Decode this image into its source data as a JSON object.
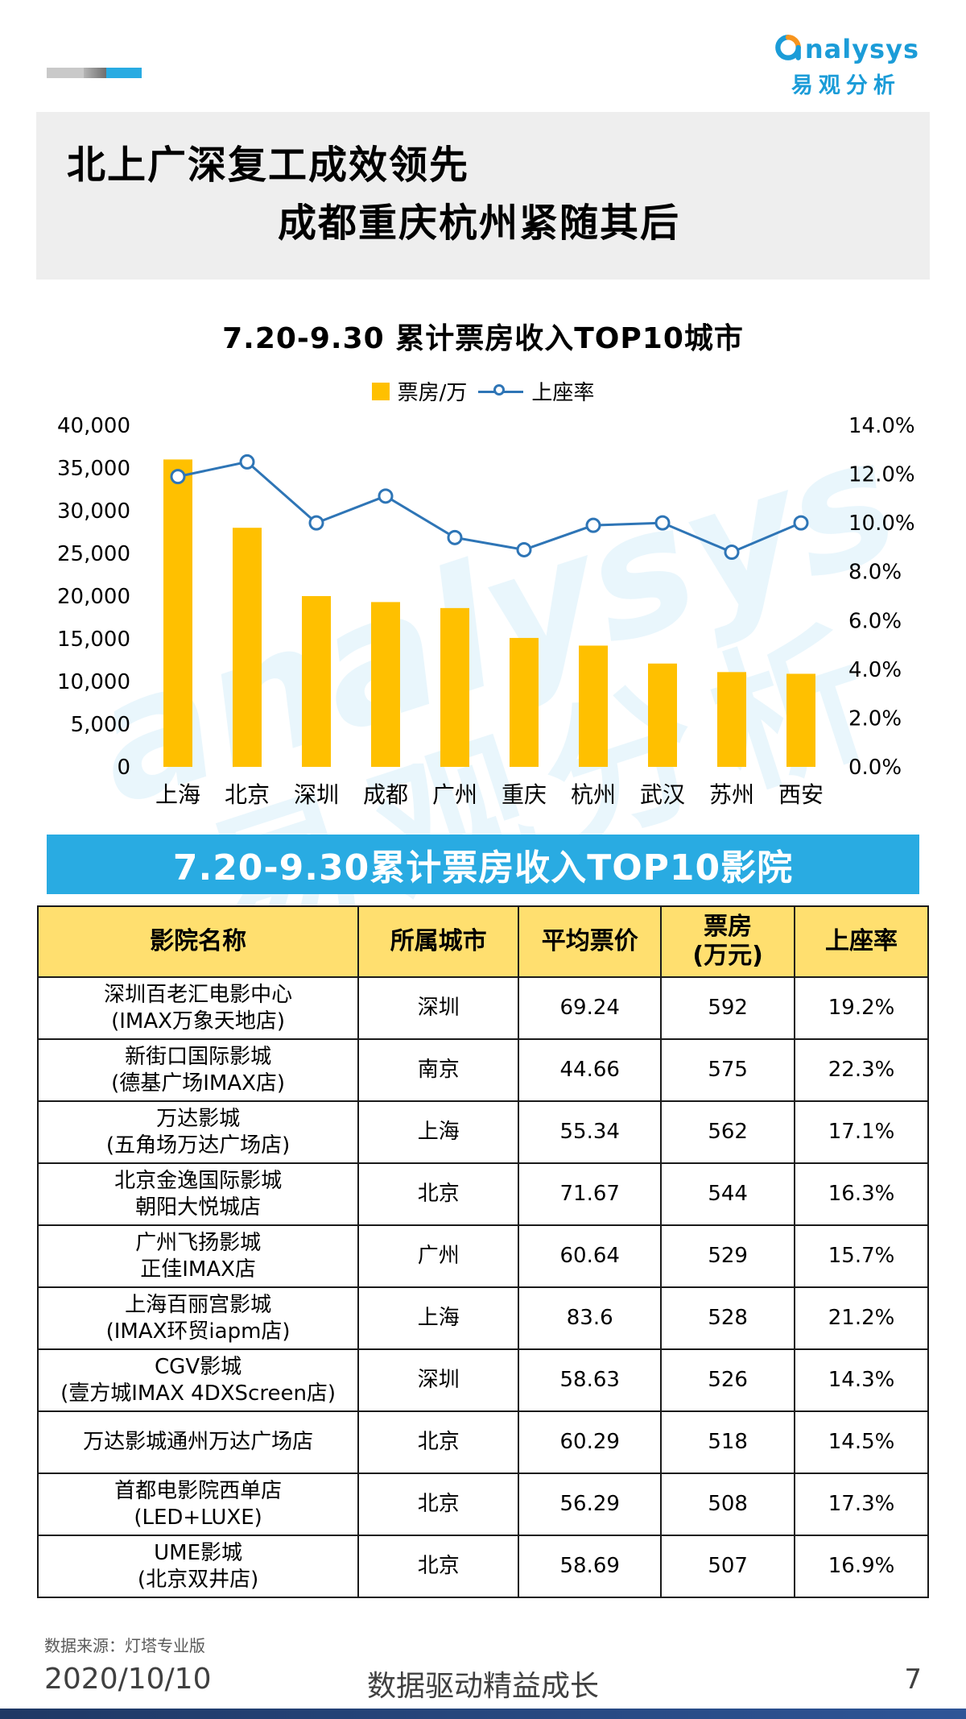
{
  "page": {
    "logo": {
      "brand": "analysys",
      "brand_rest": "nalysys",
      "brand_cn": "易观分析"
    },
    "watermark": {
      "line1": "analysys",
      "line2": "易观分析"
    },
    "header": {
      "title_line1": "北上广深复工成效领先",
      "title_line2": "成都重庆杭州紧随其后"
    },
    "footer": {
      "source": "数据来源：灯塔专业版",
      "date": "2020/10/10",
      "slogan": "数据驱动精益成长",
      "page_number": "7"
    }
  },
  "chart_data": {
    "type": "bar+line",
    "title": "7.20-9.30 累计票房收入TOP10城市",
    "categories": [
      "上海",
      "北京",
      "深圳",
      "成都",
      "广州",
      "重庆",
      "杭州",
      "武汉",
      "苏州",
      "西安"
    ],
    "series": [
      {
        "name": "票房/万",
        "type": "bar",
        "axis": "left",
        "color": "#FFC000",
        "values": [
          36000,
          28000,
          20000,
          19300,
          18600,
          15100,
          14200,
          12100,
          11100,
          10900
        ]
      },
      {
        "name": "上座率",
        "type": "line",
        "axis": "right",
        "color": "#2E75B6",
        "values": [
          11.9,
          12.5,
          10.0,
          11.1,
          9.4,
          8.9,
          9.9,
          10.0,
          8.8,
          10.0
        ]
      }
    ],
    "left_axis": {
      "min": 0,
      "max": 40000,
      "step": 5000,
      "labels": [
        "40,000",
        "35,000",
        "30,000",
        "25,000",
        "20,000",
        "15,000",
        "10,000",
        "5,000",
        "0"
      ]
    },
    "right_axis": {
      "min": 0,
      "max": 14,
      "step": 2,
      "labels": [
        "14.0%",
        "12.0%",
        "10.0%",
        "8.0%",
        "6.0%",
        "4.0%",
        "2.0%",
        "0.0%"
      ]
    },
    "legend_position": "top",
    "grid": false
  },
  "table": {
    "banner": "7.20-9.30累计票房收入TOP10影院",
    "headers": [
      [
        "影院名称"
      ],
      [
        "所属城市"
      ],
      [
        "平均票价"
      ],
      [
        "票房",
        "(万元)"
      ],
      [
        "上座率"
      ]
    ],
    "rows": [
      {
        "name_lines": [
          "深圳百老汇电影中心",
          "(IMAX万象天地店)"
        ],
        "city": "深圳",
        "price": "69.24",
        "box": "592",
        "rate": "19.2%"
      },
      {
        "name_lines": [
          "新街口国际影城",
          "(德基广场IMAX店)"
        ],
        "city": "南京",
        "price": "44.66",
        "box": "575",
        "rate": "22.3%"
      },
      {
        "name_lines": [
          "万达影城",
          "(五角场万达广场店)"
        ],
        "city": "上海",
        "price": "55.34",
        "box": "562",
        "rate": "17.1%"
      },
      {
        "name_lines": [
          "北京金逸国际影城",
          "朝阳大悦城店"
        ],
        "city": "北京",
        "price": "71.67",
        "box": "544",
        "rate": "16.3%"
      },
      {
        "name_lines": [
          "广州飞扬影城",
          "正佳IMAX店"
        ],
        "city": "广州",
        "price": "60.64",
        "box": "529",
        "rate": "15.7%"
      },
      {
        "name_lines": [
          "上海百丽宫影城",
          "(IMAX环贸iapm店)"
        ],
        "city": "上海",
        "price": "83.6",
        "box": "528",
        "rate": "21.2%"
      },
      {
        "name_lines": [
          "CGV影城",
          "(壹方城IMAX 4DXScreen店)"
        ],
        "city": "深圳",
        "price": "58.63",
        "box": "526",
        "rate": "14.3%"
      },
      {
        "name_lines": [
          "万达影城通州万达广场店"
        ],
        "city": "北京",
        "price": "60.29",
        "box": "518",
        "rate": "14.5%"
      },
      {
        "name_lines": [
          "首都电影院西单店",
          "(LED+LUXE)"
        ],
        "city": "北京",
        "price": "56.29",
        "box": "508",
        "rate": "17.3%"
      },
      {
        "name_lines": [
          "UME影城",
          "(北京双井店)"
        ],
        "city": "北京",
        "price": "58.69",
        "box": "507",
        "rate": "16.9%"
      }
    ]
  }
}
